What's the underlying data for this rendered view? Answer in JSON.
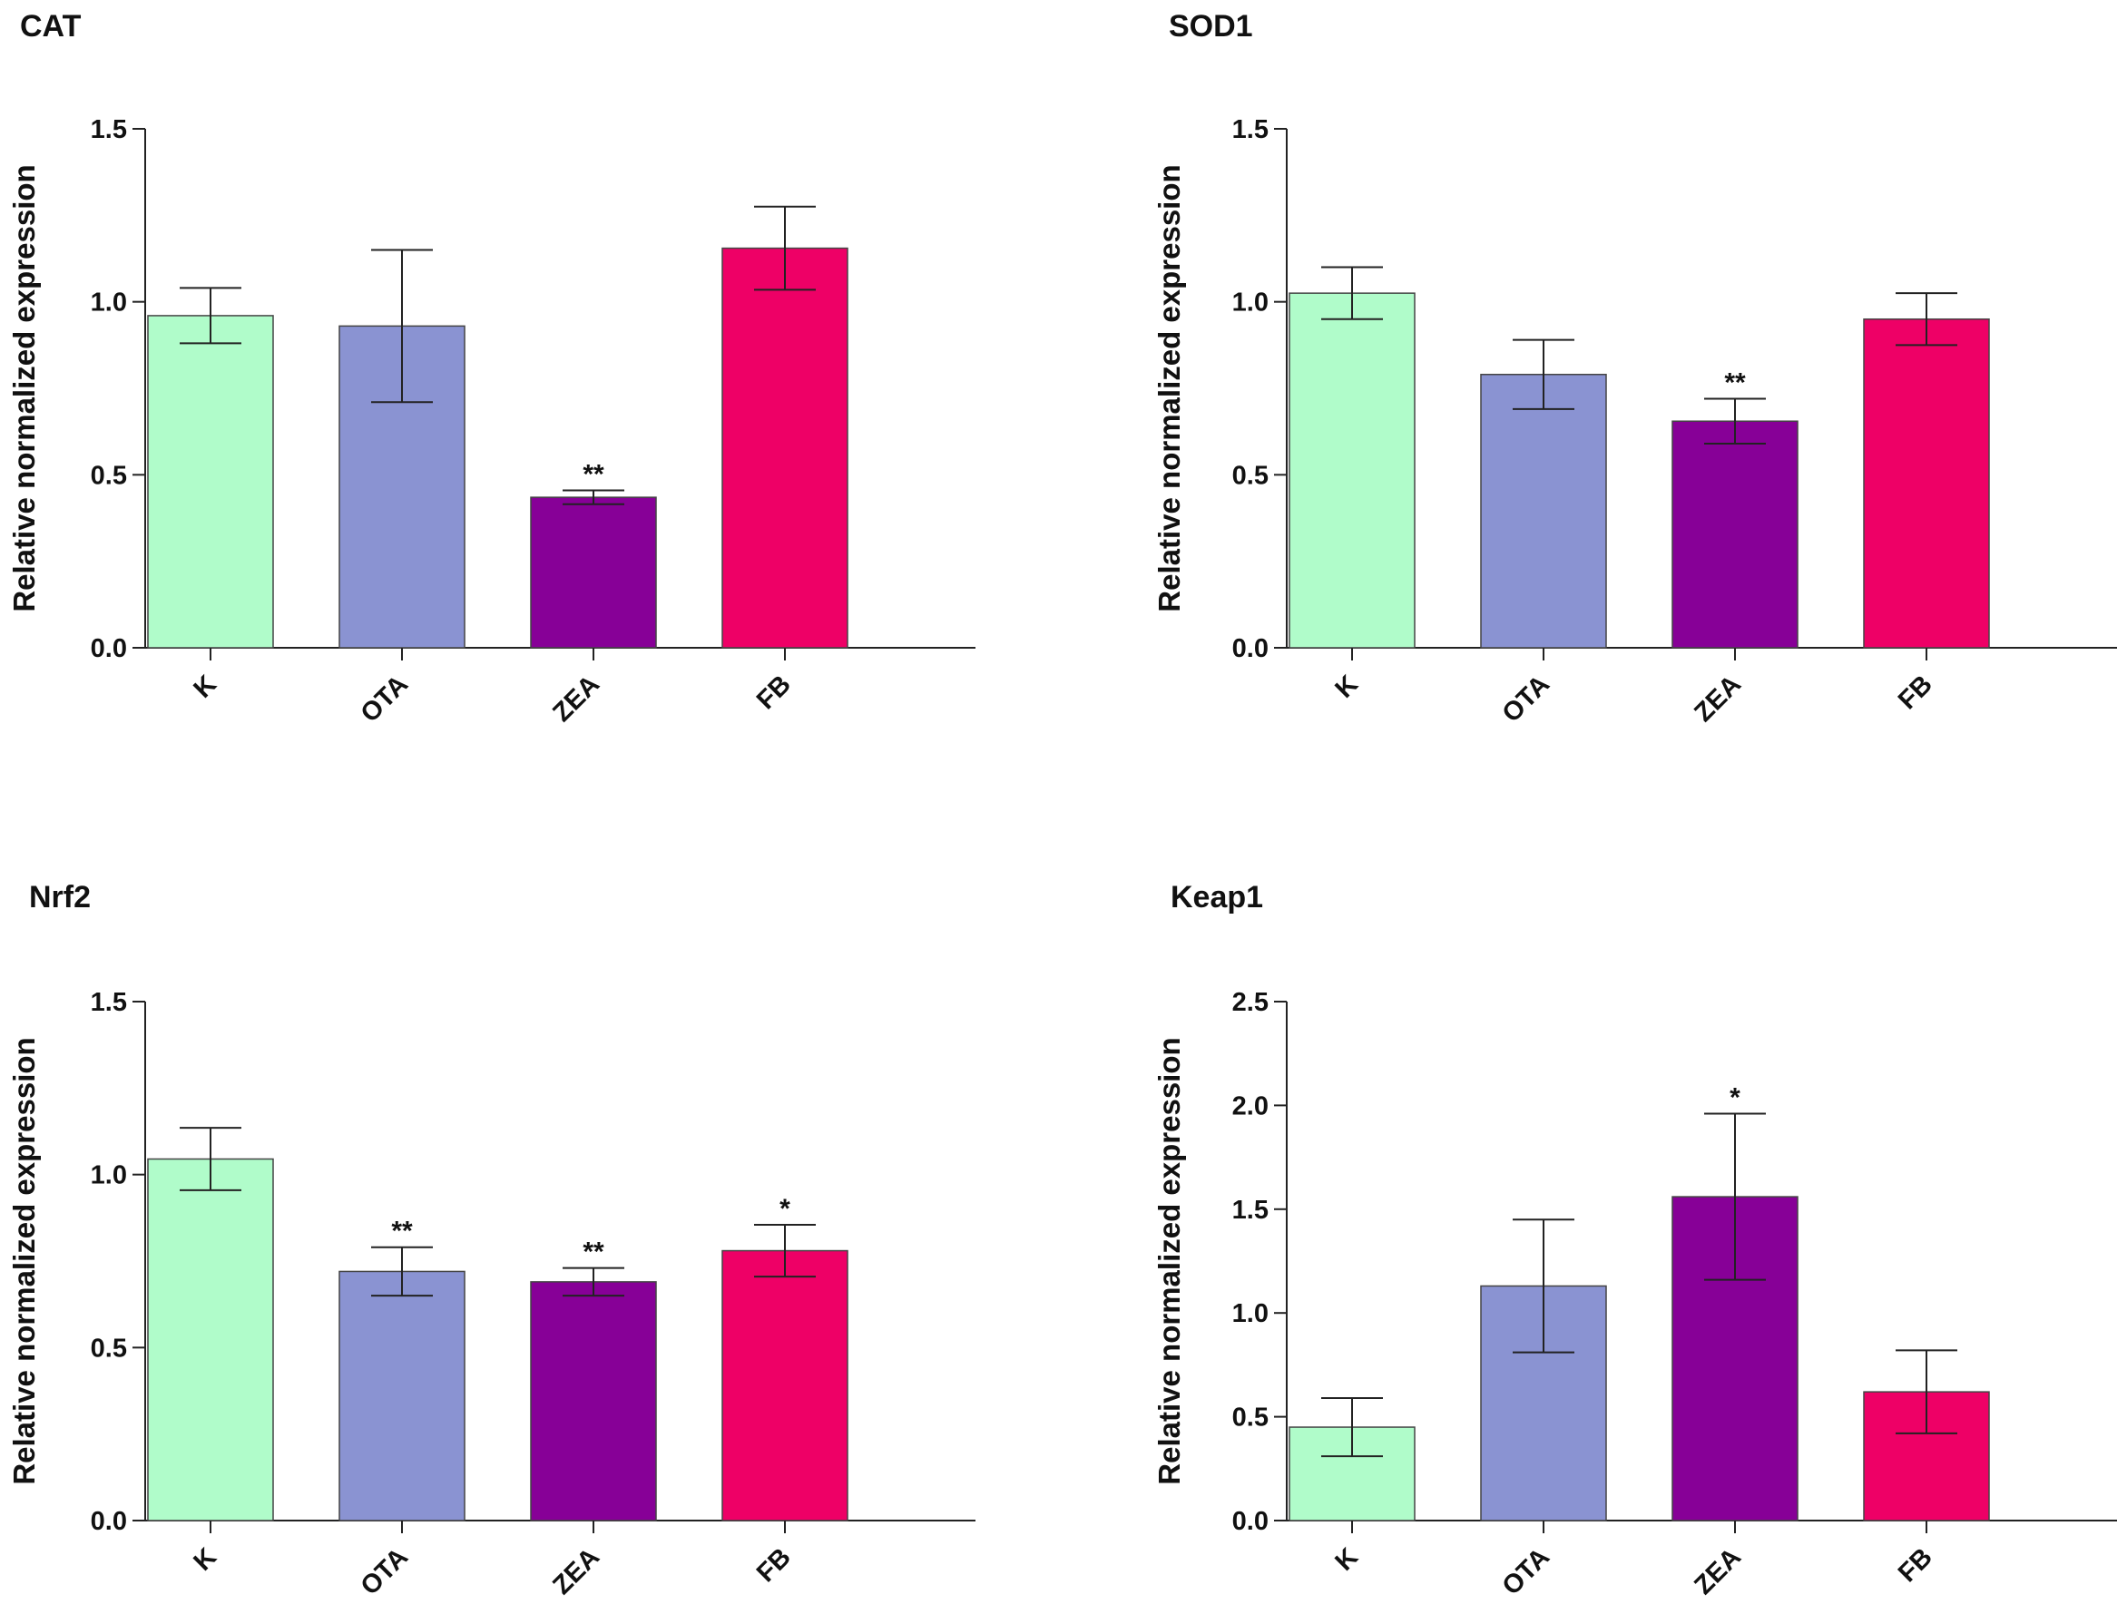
{
  "figure": {
    "colors": {
      "K": "#b0fcca",
      "OTA": "#8a93d2",
      "ZEA": "#870097",
      "FB": "#ee0066",
      "axis": "#222222"
    }
  },
  "chart_data": [
    {
      "type": "bar",
      "title": "CAT",
      "xlabel": "",
      "ylabel": "Relative normalized expression",
      "categories": [
        "K",
        "OTA",
        "ZEA",
        "FB"
      ],
      "values": [
        0.96,
        0.93,
        0.435,
        1.155
      ],
      "errors": [
        0.08,
        0.22,
        0.02,
        0.12
      ],
      "annotations": [
        "",
        "",
        "**",
        ""
      ],
      "ylim": [
        0,
        1.5
      ],
      "yticks": [
        0,
        0.5,
        1.0,
        1.5
      ],
      "ytick_labels": [
        "0.0",
        "0.5",
        "1.0",
        "1.5"
      ]
    },
    {
      "type": "bar",
      "title": "SOD1",
      "xlabel": "",
      "ylabel": "Relative normalized expression",
      "categories": [
        "K",
        "OTA",
        "ZEA",
        "FB"
      ],
      "values": [
        1.025,
        0.79,
        0.655,
        0.95
      ],
      "errors": [
        0.075,
        0.1,
        0.065,
        0.075
      ],
      "annotations": [
        "",
        "",
        "**",
        ""
      ],
      "ylim": [
        0,
        1.5
      ],
      "yticks": [
        0,
        0.5,
        1.0,
        1.5
      ],
      "ytick_labels": [
        "0.0",
        "0.5",
        "1.0",
        "1.5"
      ]
    },
    {
      "type": "bar",
      "title": "Nrf2",
      "xlabel": "",
      "ylabel": "Relative normalized expression",
      "categories": [
        "K",
        "OTA",
        "ZEA",
        "FB"
      ],
      "values": [
        1.045,
        0.72,
        0.69,
        0.78
      ],
      "errors": [
        0.09,
        0.07,
        0.04,
        0.075
      ],
      "annotations": [
        "",
        "**",
        "**",
        "*"
      ],
      "ylim": [
        0,
        1.5
      ],
      "yticks": [
        0,
        0.5,
        1.0,
        1.5
      ],
      "ytick_labels": [
        "0.0",
        "0.5",
        "1.0",
        "1.5"
      ]
    },
    {
      "type": "bar",
      "title": "Keap1",
      "xlabel": "",
      "ylabel": "Relative normalized expression",
      "categories": [
        "K",
        "OTA",
        "ZEA",
        "FB"
      ],
      "values": [
        0.45,
        1.13,
        1.56,
        0.62
      ],
      "errors": [
        0.14,
        0.32,
        0.4,
        0.2
      ],
      "annotations": [
        "",
        "",
        "*",
        ""
      ],
      "ylim": [
        0,
        2.5
      ],
      "yticks": [
        0,
        0.5,
        1.0,
        1.5,
        2.0,
        2.5
      ],
      "ytick_labels": [
        "0.0",
        "0.5",
        "1.0",
        "1.5",
        "2.0",
        "2.5"
      ]
    }
  ]
}
